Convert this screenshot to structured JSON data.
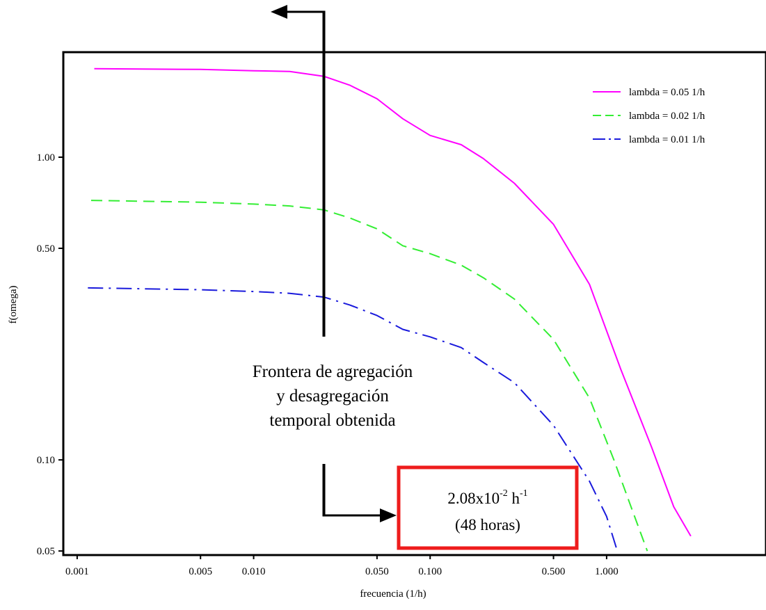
{
  "chart_data": {
    "type": "line",
    "title": "",
    "xlabel": "frecuencia (1/h)",
    "ylabel": "f(omega)",
    "x_scale": "log",
    "y_scale": "log",
    "xlim": [
      0.00085,
      8.0
    ],
    "ylim": [
      0.049,
      2.2
    ],
    "x_ticks": [
      0.001,
      0.005,
      0.01,
      0.05,
      0.1,
      0.5,
      1.0
    ],
    "x_tick_labels": [
      "0.001",
      "0.005",
      "0.010",
      "0.050",
      "0.100",
      "0.500",
      "1.000"
    ],
    "y_ticks": [
      0.05,
      0.1,
      0.5,
      1.0
    ],
    "y_tick_labels": [
      "0.05",
      "0.10",
      "0.50",
      "1.00"
    ],
    "grid": false,
    "legend_position": "top-right",
    "series": [
      {
        "name": "lambda = 0.05 1/h",
        "color": "#ff00ff",
        "dash": "solid",
        "x": [
          0.00125,
          0.005,
          0.01,
          0.016,
          0.025,
          0.035,
          0.05,
          0.07,
          0.1,
          0.15,
          0.2,
          0.3,
          0.5,
          0.8,
          1.2,
          1.8,
          2.4,
          3.0
        ],
        "y": [
          1.96,
          1.95,
          1.93,
          1.92,
          1.85,
          1.73,
          1.56,
          1.34,
          1.18,
          1.1,
          0.99,
          0.82,
          0.6,
          0.38,
          0.2,
          0.11,
          0.07,
          0.056
        ]
      },
      {
        "name": "lambda = 0.02 1/h",
        "color": "#33ee33",
        "dash": "dash",
        "x": [
          0.0012,
          0.005,
          0.01,
          0.016,
          0.025,
          0.035,
          0.05,
          0.07,
          0.1,
          0.15,
          0.2,
          0.3,
          0.5,
          0.8,
          1.1,
          1.4,
          1.7
        ],
        "y": [
          0.72,
          0.71,
          0.7,
          0.69,
          0.67,
          0.63,
          0.58,
          0.51,
          0.48,
          0.44,
          0.4,
          0.34,
          0.25,
          0.16,
          0.1,
          0.068,
          0.05
        ]
      },
      {
        "name": "lambda = 0.01 1/h",
        "color": "#1a1adc",
        "dash": "dashdot",
        "x": [
          0.00115,
          0.005,
          0.01,
          0.016,
          0.025,
          0.035,
          0.05,
          0.07,
          0.1,
          0.15,
          0.2,
          0.3,
          0.5,
          0.8,
          1.0,
          1.15
        ],
        "y": [
          0.37,
          0.365,
          0.36,
          0.355,
          0.345,
          0.325,
          0.3,
          0.27,
          0.255,
          0.235,
          0.21,
          0.18,
          0.13,
          0.085,
          0.065,
          0.05
        ]
      }
    ],
    "annotations": {
      "arrow_x": 0.025,
      "frontier_lines": [
        "Frontera de agregación",
        "y desagregación",
        "temporal obtenida"
      ],
      "box_value_main": "2.08x10",
      "box_value_exp": "-2",
      "box_value_unit": " h",
      "box_value_unit_exp": "-1",
      "box_value_hours": "(48 horas)",
      "box_border_color": "#ee1c1c"
    }
  }
}
